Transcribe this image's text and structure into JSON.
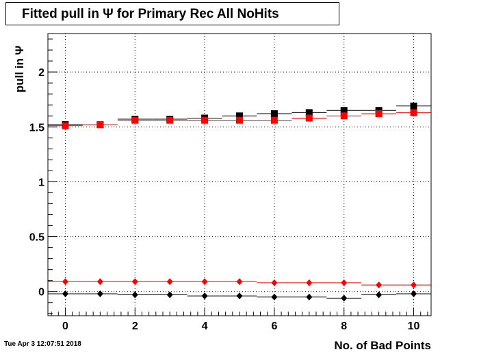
{
  "title": "Fitted pull in  Ψ  for Primary Rec All NoHits",
  "timestamp": "Tue Apr  3 12:07:51 2018",
  "chart_data": {
    "type": "scatter",
    "title": "Fitted pull in  Ψ  for Primary Rec All NoHits",
    "xlabel": "No. of Bad Points",
    "ylabel": "pull in  Ψ",
    "xlim": [
      -0.5,
      10.5
    ],
    "ylim": [
      -0.22,
      2.35
    ],
    "x_ticks": [
      0,
      2,
      4,
      6,
      8,
      10
    ],
    "y_ticks": [
      0,
      0.5,
      1,
      1.5,
      2
    ],
    "y_tick_labels": [
      "0",
      "0.5",
      "1",
      "1.5",
      "2"
    ],
    "grid": true,
    "x": [
      0,
      1,
      2,
      3,
      4,
      5,
      6,
      7,
      8,
      9,
      10
    ],
    "series": [
      {
        "color": "#000000",
        "marker": "square",
        "values": [
          1.52,
          1.52,
          1.57,
          1.57,
          1.58,
          1.6,
          1.62,
          1.63,
          1.65,
          1.65,
          1.69
        ]
      },
      {
        "color": "#ff0000",
        "marker": "square",
        "values": [
          1.51,
          1.52,
          1.56,
          1.56,
          1.56,
          1.56,
          1.56,
          1.58,
          1.6,
          1.62,
          1.63
        ]
      },
      {
        "color": "#ff0000",
        "marker": "diamond",
        "values": [
          0.09,
          0.09,
          0.09,
          0.09,
          0.09,
          0.09,
          0.08,
          0.08,
          0.08,
          0.06,
          0.06
        ]
      },
      {
        "color": "#000000",
        "marker": "diamond",
        "values": [
          -0.02,
          -0.02,
          -0.03,
          -0.03,
          -0.04,
          -0.04,
          -0.05,
          -0.05,
          -0.06,
          -0.03,
          -0.02
        ]
      }
    ]
  }
}
